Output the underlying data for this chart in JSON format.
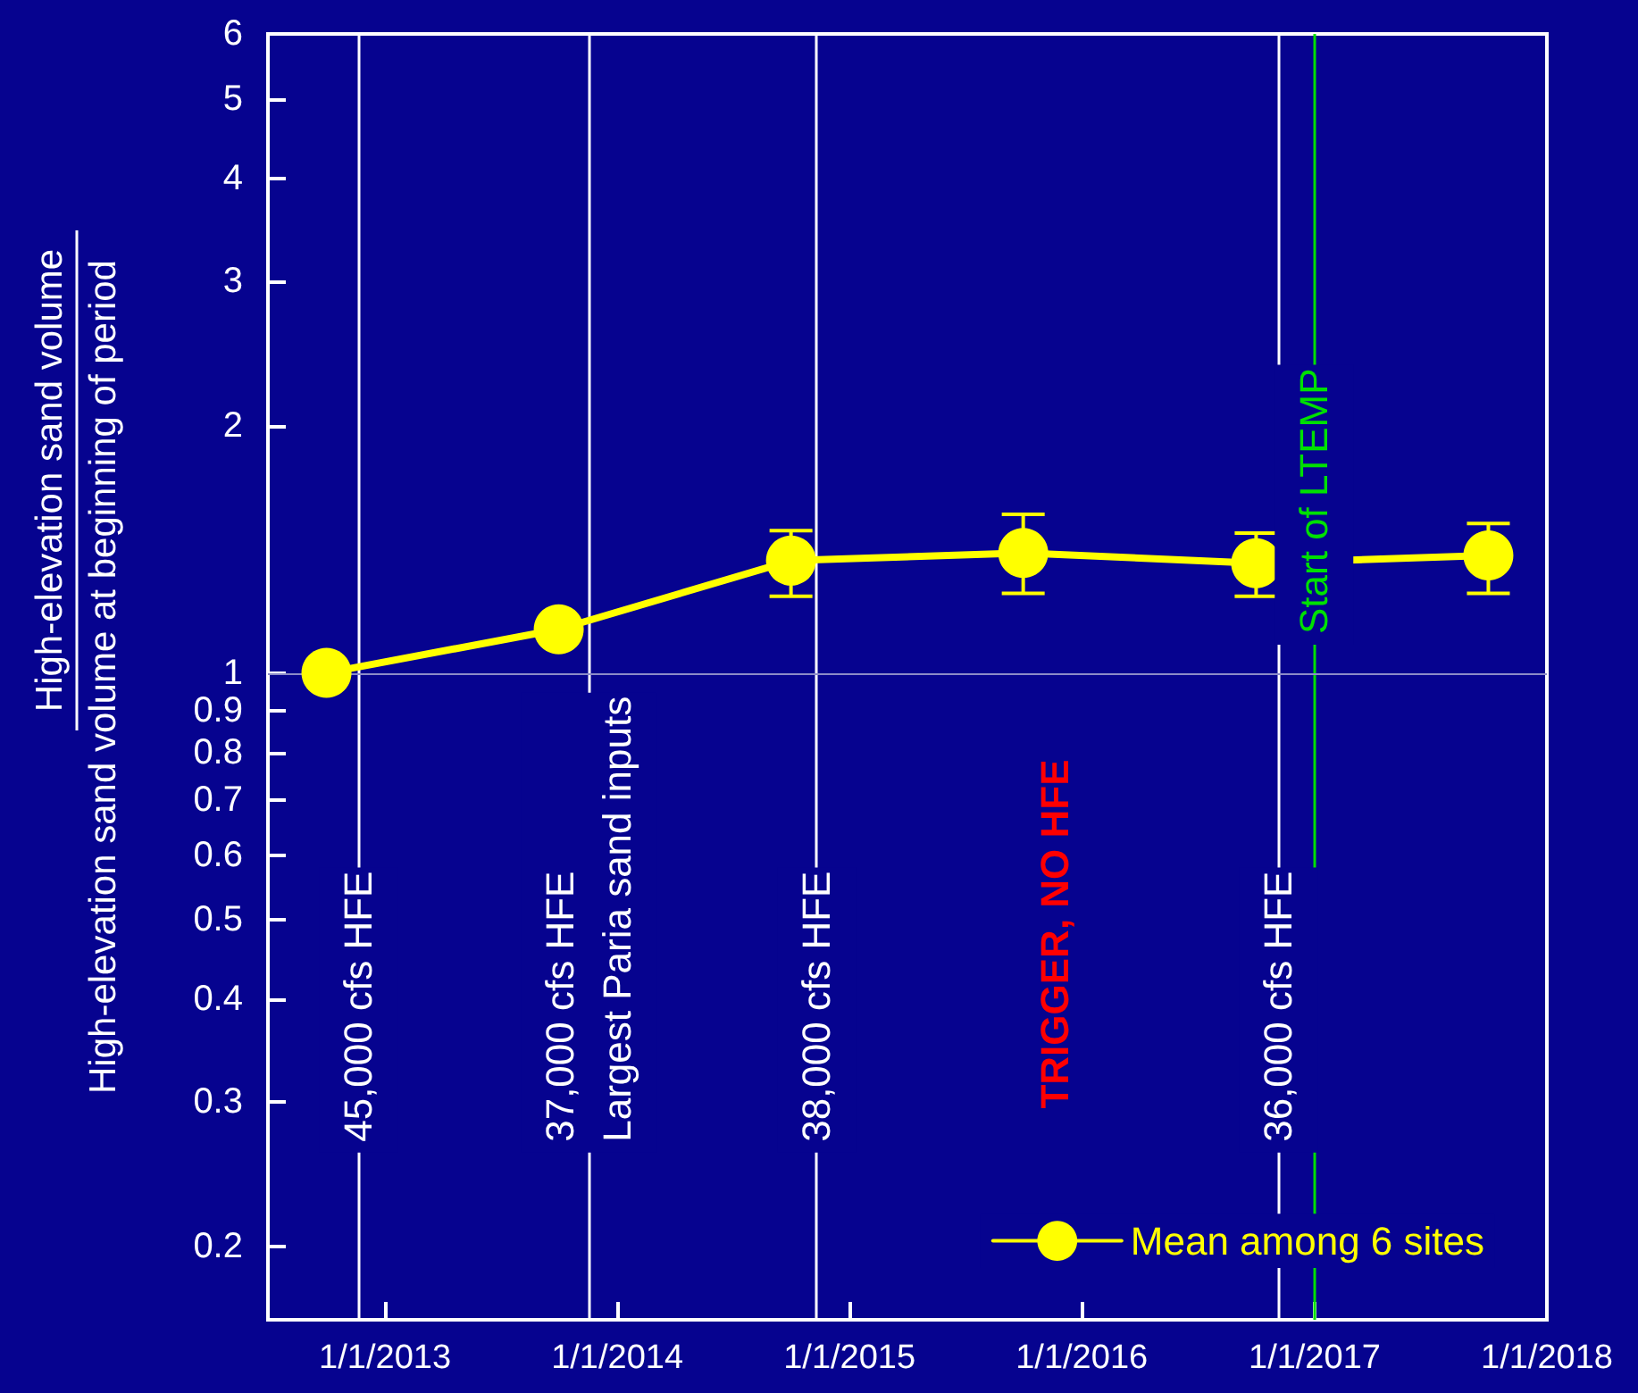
{
  "chart_data": {
    "type": "line",
    "ylabel": "High-elevation sand volume\nHigh-elevation sand volume at beginning of period",
    "x": [
      "2012-10-01",
      "2013-10-01",
      "2014-10-01",
      "2015-10-01",
      "2016-10-01",
      "2017-10-01"
    ],
    "series": [
      {
        "name": "Mean among 6 sites",
        "color": "#ffff00",
        "values": [
          1.0,
          1.13,
          1.37,
          1.4,
          1.36,
          1.39
        ],
        "errors": [
          null,
          null,
          [
            1.24,
            1.49
          ],
          [
            1.25,
            1.56
          ],
          [
            1.24,
            1.48
          ],
          [
            1.25,
            1.52
          ]
        ]
      }
    ],
    "xlim": [
      "2012-07-01",
      "2018-01-01"
    ],
    "xticks": [
      {
        "value": "2013-01-01",
        "label": "1/1/2013"
      },
      {
        "value": "2014-01-01",
        "label": "1/1/2014"
      },
      {
        "value": "2015-01-01",
        "label": "1/1/2015"
      },
      {
        "value": "2016-01-01",
        "label": "1/1/2016"
      },
      {
        "value": "2017-01-01",
        "label": "1/1/2017"
      },
      {
        "value": "2018-01-01",
        "label": "1/1/2018"
      }
    ],
    "log": "y",
    "ylim": [
      0.163,
      6
    ],
    "yticks": [
      0.2,
      0.3,
      0.4,
      0.5,
      0.6,
      0.7,
      0.8,
      0.9,
      1,
      2,
      3,
      4,
      5,
      6
    ],
    "ref_lines": [
      {
        "axis": "x",
        "value": "2012-11-20",
        "label": "45,000 cfs HFE"
      },
      {
        "axis": "x",
        "value": "2013-11-17",
        "label": "37,000 cfs HFE\nLargest Paria sand inputs"
      },
      {
        "axis": "x",
        "value": "2014-11-10",
        "label": "38,000 cfs HFE"
      },
      {
        "axis": "x",
        "value": "2016-11-05",
        "label": "36,000 cfs HFE"
      },
      {
        "axis": "x",
        "value": "2016-12-31",
        "label": "Start of LTEMP",
        "color": "#00e000"
      },
      {
        "axis": "y",
        "value": 1,
        "color": "#8c8cc8"
      }
    ],
    "annotations": [
      "TRIGGER, NO HFE"
    ],
    "marker": "circle",
    "grid": false,
    "legend": "bottom right"
  }
}
